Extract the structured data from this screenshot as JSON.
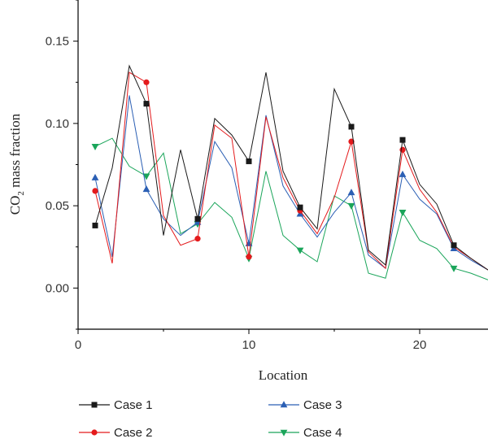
{
  "chart_data": {
    "type": "line",
    "xlabel": "Location",
    "ylabel": {
      "main": "CO",
      "sub": "2",
      "rest": " mass fraction"
    },
    "xlim": [
      0,
      24
    ],
    "ylim": [
      -0.025,
      0.175
    ],
    "xticks": [
      0,
      10,
      20
    ],
    "xtick_labels": [
      "0",
      "10",
      "20"
    ],
    "yticks": [
      0,
      0.05,
      0.1,
      0.15
    ],
    "ytick_labels": [
      "0.00",
      "0.05",
      "0.10",
      "0.15"
    ],
    "grid": false,
    "legend_position": "bottom",
    "series": [
      {
        "name": "Case 1",
        "color": "#1a1a1a",
        "marker": "square",
        "x": [
          1,
          2,
          3,
          4,
          5,
          6,
          7,
          8,
          9,
          10,
          11,
          12,
          13,
          14,
          15,
          16,
          17,
          18,
          19,
          20,
          21,
          22,
          23,
          24
        ],
        "y": [
          0.038,
          0.073,
          0.135,
          0.112,
          0.032,
          0.084,
          0.042,
          0.103,
          0.093,
          0.077,
          0.131,
          0.071,
          0.049,
          0.036,
          0.121,
          0.098,
          0.023,
          0.014,
          0.09,
          0.063,
          0.051,
          0.026,
          0.018,
          0.011
        ],
        "marker_x": [
          1,
          4,
          7,
          10,
          13,
          16,
          19,
          22
        ]
      },
      {
        "name": "Case 2",
        "color": "#e41a1c",
        "marker": "circle",
        "x": [
          1,
          2,
          3,
          4,
          5,
          6,
          7,
          8,
          9,
          10,
          11,
          12,
          13,
          14,
          15,
          16,
          17,
          18,
          19,
          20,
          21,
          22,
          23,
          24
        ],
        "y": [
          0.059,
          0.015,
          0.131,
          0.125,
          0.044,
          0.026,
          0.03,
          0.099,
          0.091,
          0.019,
          0.104,
          0.067,
          0.047,
          0.033,
          0.055,
          0.089,
          0.022,
          0.012,
          0.084,
          0.06,
          0.046,
          0.025,
          0.018,
          0.011
        ],
        "marker_x": [
          1,
          4,
          7,
          10,
          13,
          16,
          19
        ]
      },
      {
        "name": "Case 3",
        "color": "#2b5fb4",
        "marker": "triangle-up",
        "x": [
          1,
          2,
          3,
          4,
          5,
          6,
          7,
          8,
          9,
          10,
          11,
          12,
          13,
          14,
          15,
          16,
          17,
          18,
          19,
          20,
          21,
          22,
          23,
          24
        ],
        "y": [
          0.067,
          0.019,
          0.117,
          0.06,
          0.042,
          0.032,
          0.04,
          0.089,
          0.073,
          0.027,
          0.105,
          0.062,
          0.045,
          0.031,
          0.046,
          0.058,
          0.02,
          0.012,
          0.069,
          0.054,
          0.045,
          0.024,
          0.017,
          0.011
        ],
        "marker_x": [
          1,
          4,
          7,
          10,
          13,
          16,
          19,
          22
        ]
      },
      {
        "name": "Case 4",
        "color": "#1aa55a",
        "marker": "triangle-down",
        "x": [
          1,
          2,
          3,
          4,
          5,
          6,
          7,
          8,
          9,
          10,
          11,
          12,
          13,
          14,
          15,
          16,
          17,
          18,
          19,
          20,
          21,
          22,
          23,
          24
        ],
        "y": [
          0.086,
          0.091,
          0.074,
          0.068,
          0.082,
          0.033,
          0.039,
          0.052,
          0.043,
          0.018,
          0.071,
          0.032,
          0.023,
          0.016,
          0.056,
          0.05,
          0.009,
          0.006,
          0.046,
          0.029,
          0.024,
          0.012,
          0.009,
          0.005
        ],
        "marker_x": [
          1,
          4,
          7,
          10,
          13,
          16,
          19,
          22
        ]
      }
    ]
  }
}
